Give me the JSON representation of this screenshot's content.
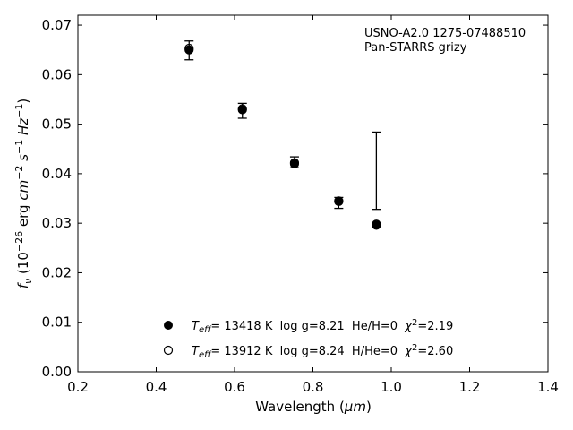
{
  "chart_data": {
    "type": "scatter",
    "xlabel": "Wavelength (",
    "xlabel_unit": "μm",
    "ylabel_prefix": "f",
    "ylabel_sub": "ν",
    "ylabel_body": " (10",
    "ylabel_exp1": "−26",
    "ylabel_mid1": " erg ",
    "ylabel_cm": "cm",
    "ylabel_exp2": "−2",
    "ylabel_s": " s",
    "ylabel_exp3": "−1",
    "ylabel_hz": " Hz",
    "ylabel_exp4": "−1",
    "xlim": [
      0.2,
      1.4
    ],
    "ylim": [
      0.0,
      0.072
    ],
    "xticks": [
      0.2,
      0.4,
      0.6,
      0.8,
      1.0,
      1.2,
      1.4
    ],
    "xtick_labels": [
      "0.2",
      "0.4",
      "0.6",
      "0.8",
      "1.0",
      "1.2",
      "1.4"
    ],
    "yticks": [
      0.0,
      0.01,
      0.02,
      0.03,
      0.04,
      0.05,
      0.06,
      0.07
    ],
    "ytick_labels": [
      "0.00",
      "0.01",
      "0.02",
      "0.03",
      "0.04",
      "0.05",
      "0.06",
      "0.07"
    ],
    "grid": false,
    "annotation": {
      "line1": "USNO-A2.0 1275-07488510",
      "line2": "Pan-STARRS grizy",
      "placement": "top-right"
    },
    "observed": {
      "x": [
        0.484,
        0.62,
        0.753,
        0.866,
        0.962
      ],
      "y": [
        0.0649,
        0.0527,
        0.0423,
        0.0341,
        0.0406
      ],
      "yerr_low": [
        0.063,
        0.0512,
        0.0412,
        0.033,
        0.0328
      ],
      "yerr_high": [
        0.0668,
        0.0542,
        0.0434,
        0.0352,
        0.0484
      ]
    },
    "series": [
      {
        "marker": "filled-circle",
        "x": [
          0.484,
          0.62,
          0.753,
          0.866,
          0.962
        ],
        "y": [
          0.065,
          0.0529,
          0.042,
          0.0344,
          0.0296
        ],
        "legend_teff": "T",
        "legend_sub": "eff",
        "legend_text": "= 13418 K  log g=8.21  He/H=0  ",
        "legend_chi": "χ",
        "legend_chi_exp": "2",
        "legend_chi_val": "=2.19"
      },
      {
        "marker": "open-circle",
        "x": [
          0.484,
          0.62,
          0.753,
          0.866,
          0.962
        ],
        "y": [
          0.0653,
          0.0531,
          0.0422,
          0.0345,
          0.0298
        ],
        "legend_teff": "T",
        "legend_sub": "eff",
        "legend_text": "= 13912 K  log g=8.24  H/He=0  ",
        "legend_chi": "χ",
        "legend_chi_exp": "2",
        "legend_chi_val": "=2.60"
      }
    ],
    "legend_placement": "lower-center"
  }
}
